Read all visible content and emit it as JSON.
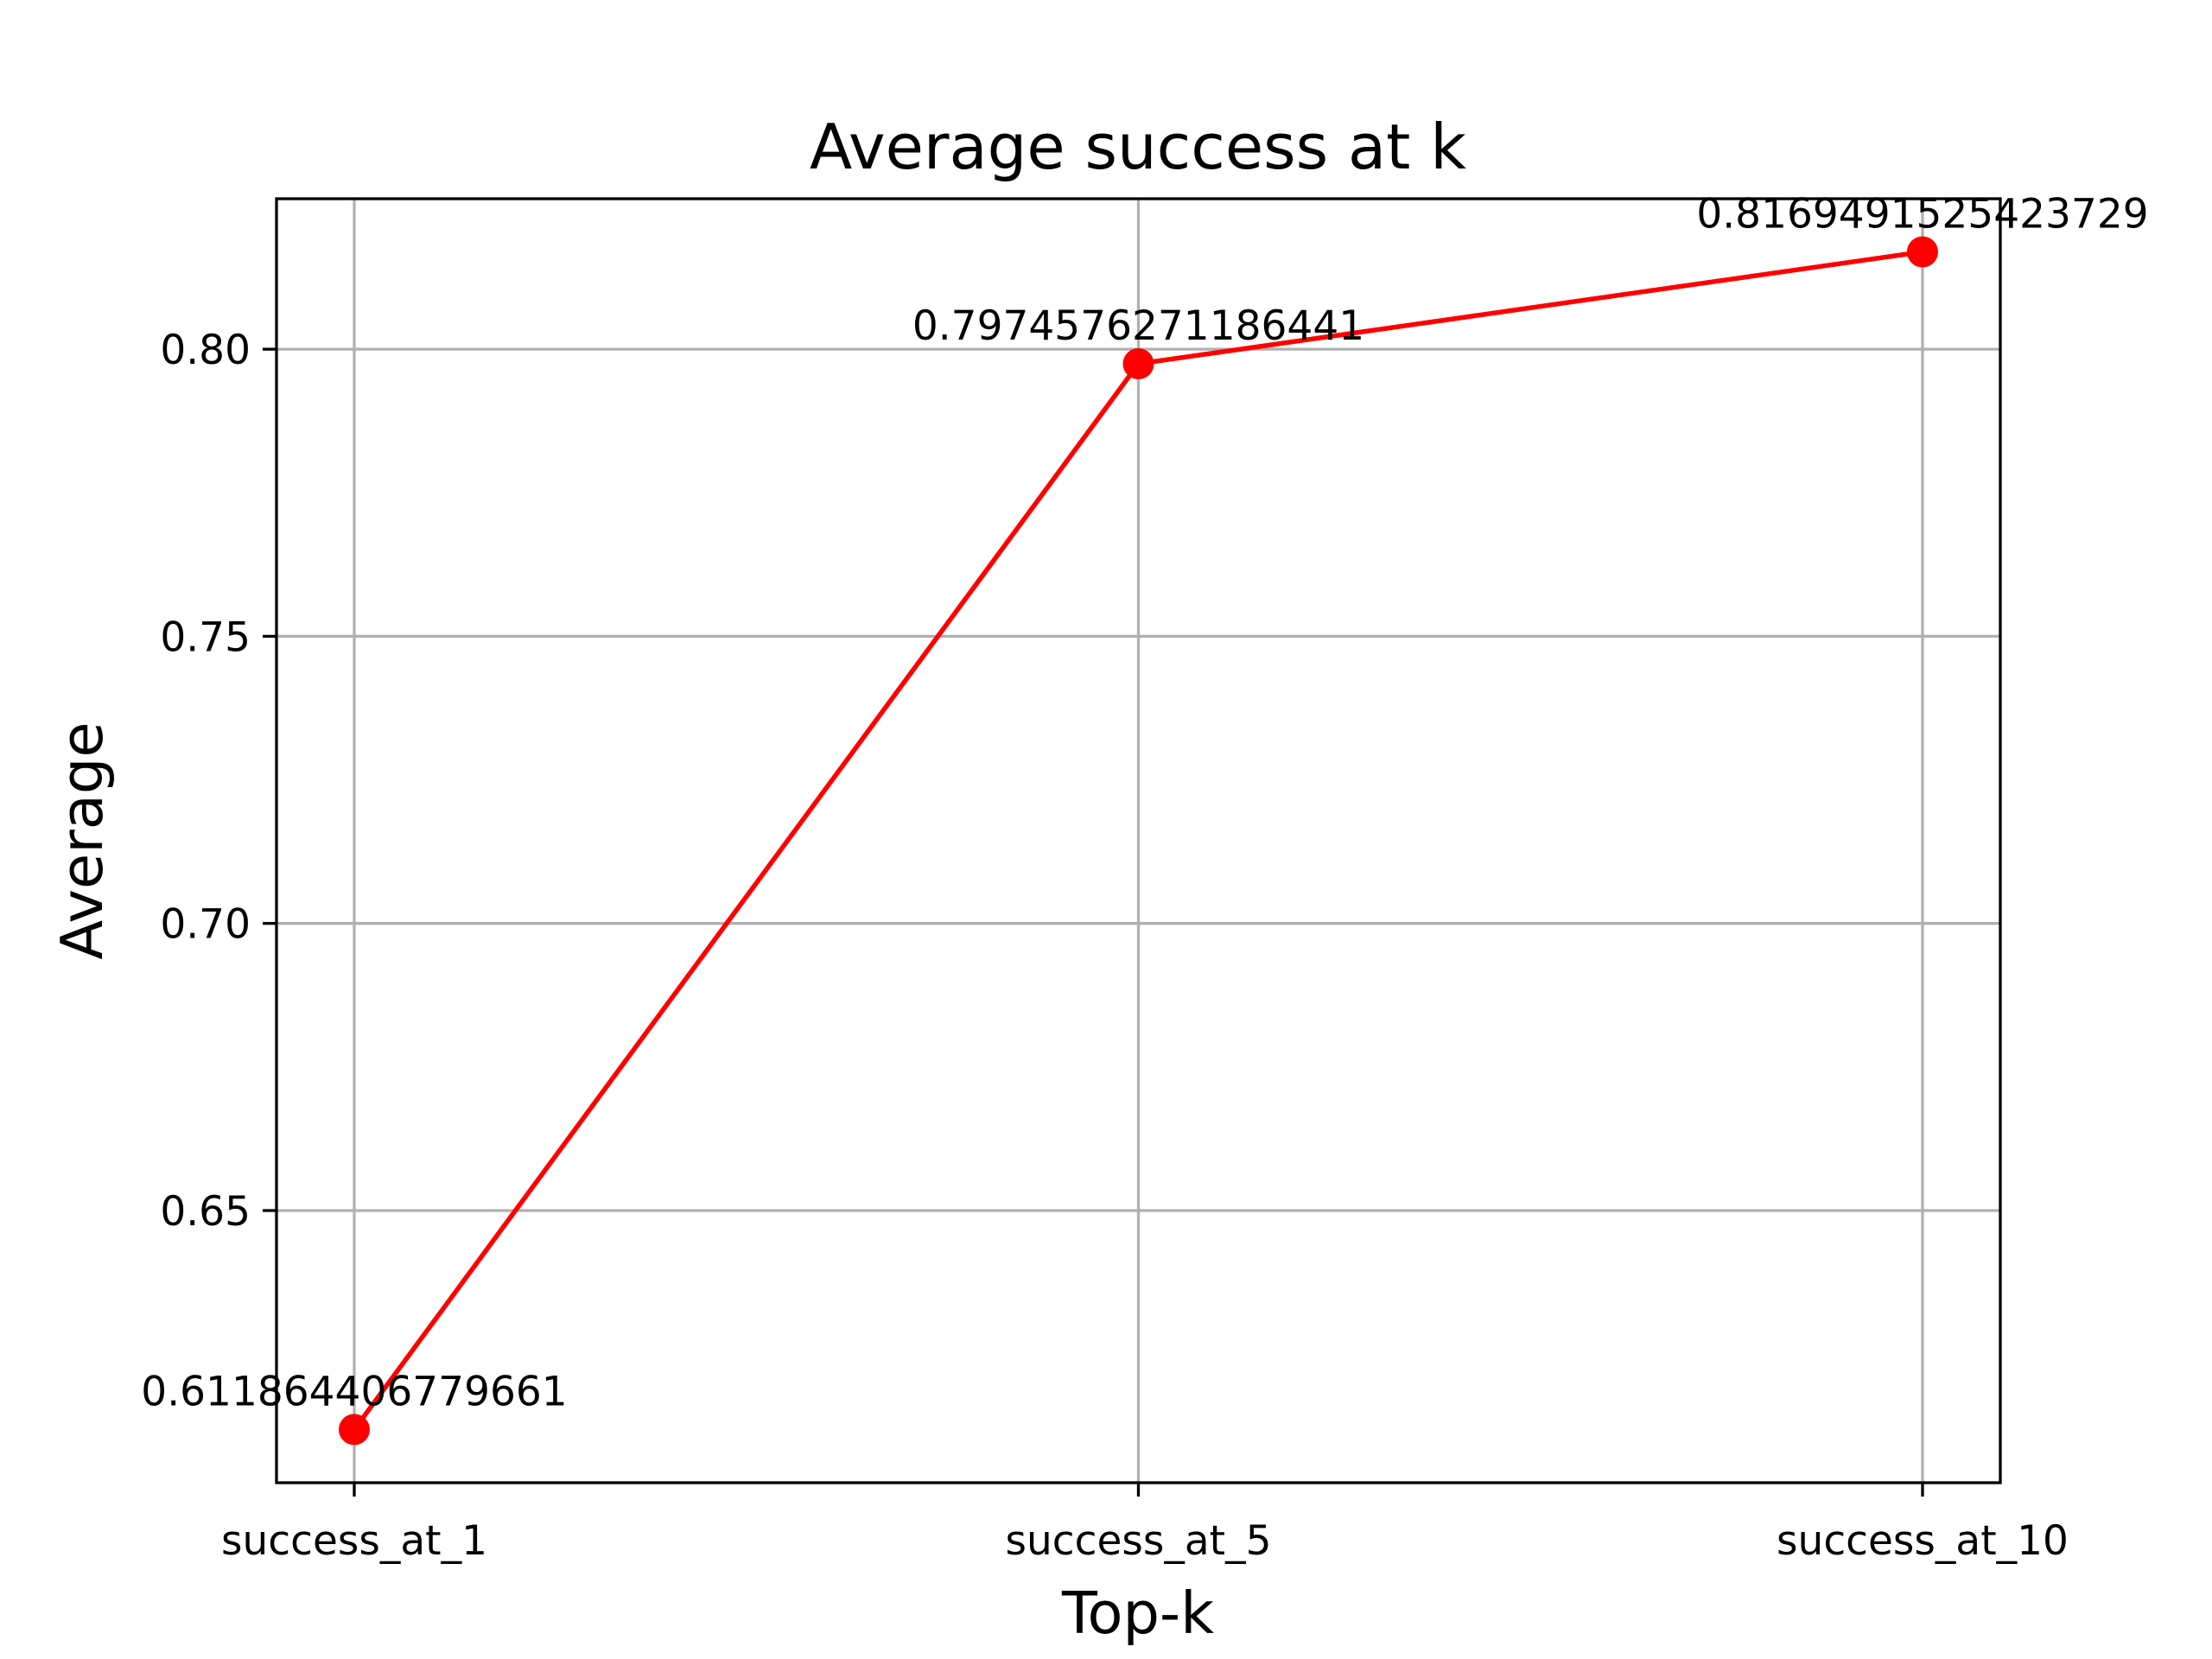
{
  "chart_data": {
    "type": "line",
    "title": "Average success at k",
    "xlabel": "Top-k",
    "ylabel": "Average",
    "categories": [
      "success_at_1",
      "success_at_5",
      "success_at_10"
    ],
    "series": [
      {
        "values": [
          0.611864406779661,
          0.7974576271186441,
          0.8169491525423729
        ],
        "data_labels": [
          "0.611864406779661",
          "0.7974576271186441",
          "0.8169491525423729"
        ]
      }
    ],
    "yticks": [
      0.65,
      0.7,
      0.75,
      0.8
    ],
    "ytick_labels": [
      "0.65",
      "0.70",
      "0.75, ",
      "0.80"
    ],
    "ylim": [
      0.6026,
      0.8262
    ],
    "grid": true,
    "line_color": "#ff0000",
    "marker": "circle"
  }
}
